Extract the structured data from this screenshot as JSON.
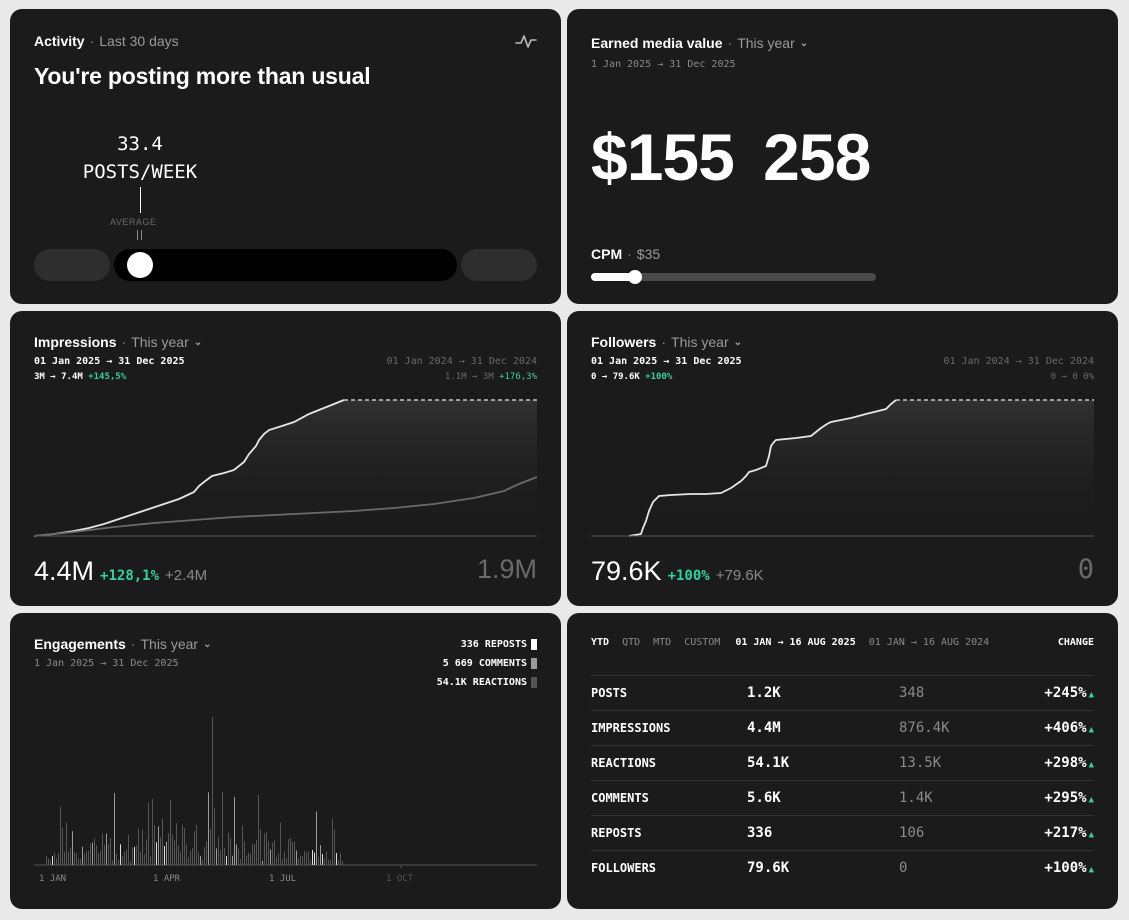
{
  "activity": {
    "title": "Activity",
    "period": "Last 30 days",
    "headline": "You're posting more than usual",
    "value": "33.4",
    "unit": "POSTS/WEEK",
    "average_label": "AVERAGE",
    "icon": "activity-pulse-icon"
  },
  "emv": {
    "title": "Earned media value",
    "period": "This year",
    "date_from": "1 Jan 2025",
    "date_to": "31 Dec 2025",
    "value": "$155 258",
    "cpm_label": "CPM",
    "cpm_value": "$35",
    "cpm_slider_fraction": 0.15
  },
  "impressions": {
    "title": "Impressions",
    "period": "This year",
    "current_range": "01 Jan 2025 → 31 Dec 2025",
    "previous_range": "01 Jan 2024 → 31 Dec 2024",
    "current_delta_from": "3M",
    "current_delta_to": "7.4M",
    "current_delta_pct": "+145,5%",
    "previous_delta_from": "1.1M",
    "previous_delta_to": "3M",
    "previous_delta_pct": "+176,3%",
    "value": "4.4M",
    "change_pct": "+128,1%",
    "change_abs": "+2.4M",
    "previous_value": "1.9M"
  },
  "followers": {
    "title": "Followers",
    "period": "This year",
    "current_range": "01 Jan 2025 → 31 Dec 2025",
    "previous_range": "01 Jan 2024 → 31 Dec 2024",
    "current_delta_from": "0",
    "current_delta_to": "79.6K",
    "current_delta_pct": "+100%",
    "previous_delta_from": "0",
    "previous_delta_to": "0",
    "previous_delta_pct": "0%",
    "value": "79.6K",
    "change_pct": "+100%",
    "change_abs": "+79.6K",
    "previous_value": "0"
  },
  "engagements": {
    "title": "Engagements",
    "period": "This year",
    "range": "1 Jan 2025 → 31 Dec 2025",
    "legend": [
      {
        "label": "336 REPOSTS",
        "color": "#ffffff"
      },
      {
        "label": "5 669 COMMENTS",
        "color": "#9a9a9a"
      },
      {
        "label": "54.1K REACTIONS",
        "color": "#555555"
      }
    ],
    "x_ticks": [
      "1 JAN",
      "1 APR",
      "1 JUL",
      "1 OCT"
    ]
  },
  "comparison": {
    "tabs": [
      "YTD",
      "QTD",
      "MTD",
      "CUSTOM"
    ],
    "current_range": "01 JAN → 16 AUG 2025",
    "previous_range": "01 JAN → 16 AUG 2024",
    "change_label": "CHANGE",
    "rows": [
      {
        "metric": "POSTS",
        "current": "1.2K",
        "previous": "348",
        "change": "+245%"
      },
      {
        "metric": "IMPRESSIONS",
        "current": "4.4M",
        "previous": "876.4K",
        "change": "+406%"
      },
      {
        "metric": "REACTIONS",
        "current": "54.1K",
        "previous": "13.5K",
        "change": "+298%"
      },
      {
        "metric": "COMMENTS",
        "current": "5.6K",
        "previous": "1.4K",
        "change": "+295%"
      },
      {
        "metric": "REPOSTS",
        "current": "336",
        "previous": "106",
        "change": "+217%"
      },
      {
        "metric": "FOLLOWERS",
        "current": "79.6K",
        "previous": "0",
        "change": "+100%"
      }
    ]
  },
  "colors": {
    "card": "#1b1b1b",
    "accent_green": "#2fd2a0",
    "background": "#e9e9e9"
  }
}
